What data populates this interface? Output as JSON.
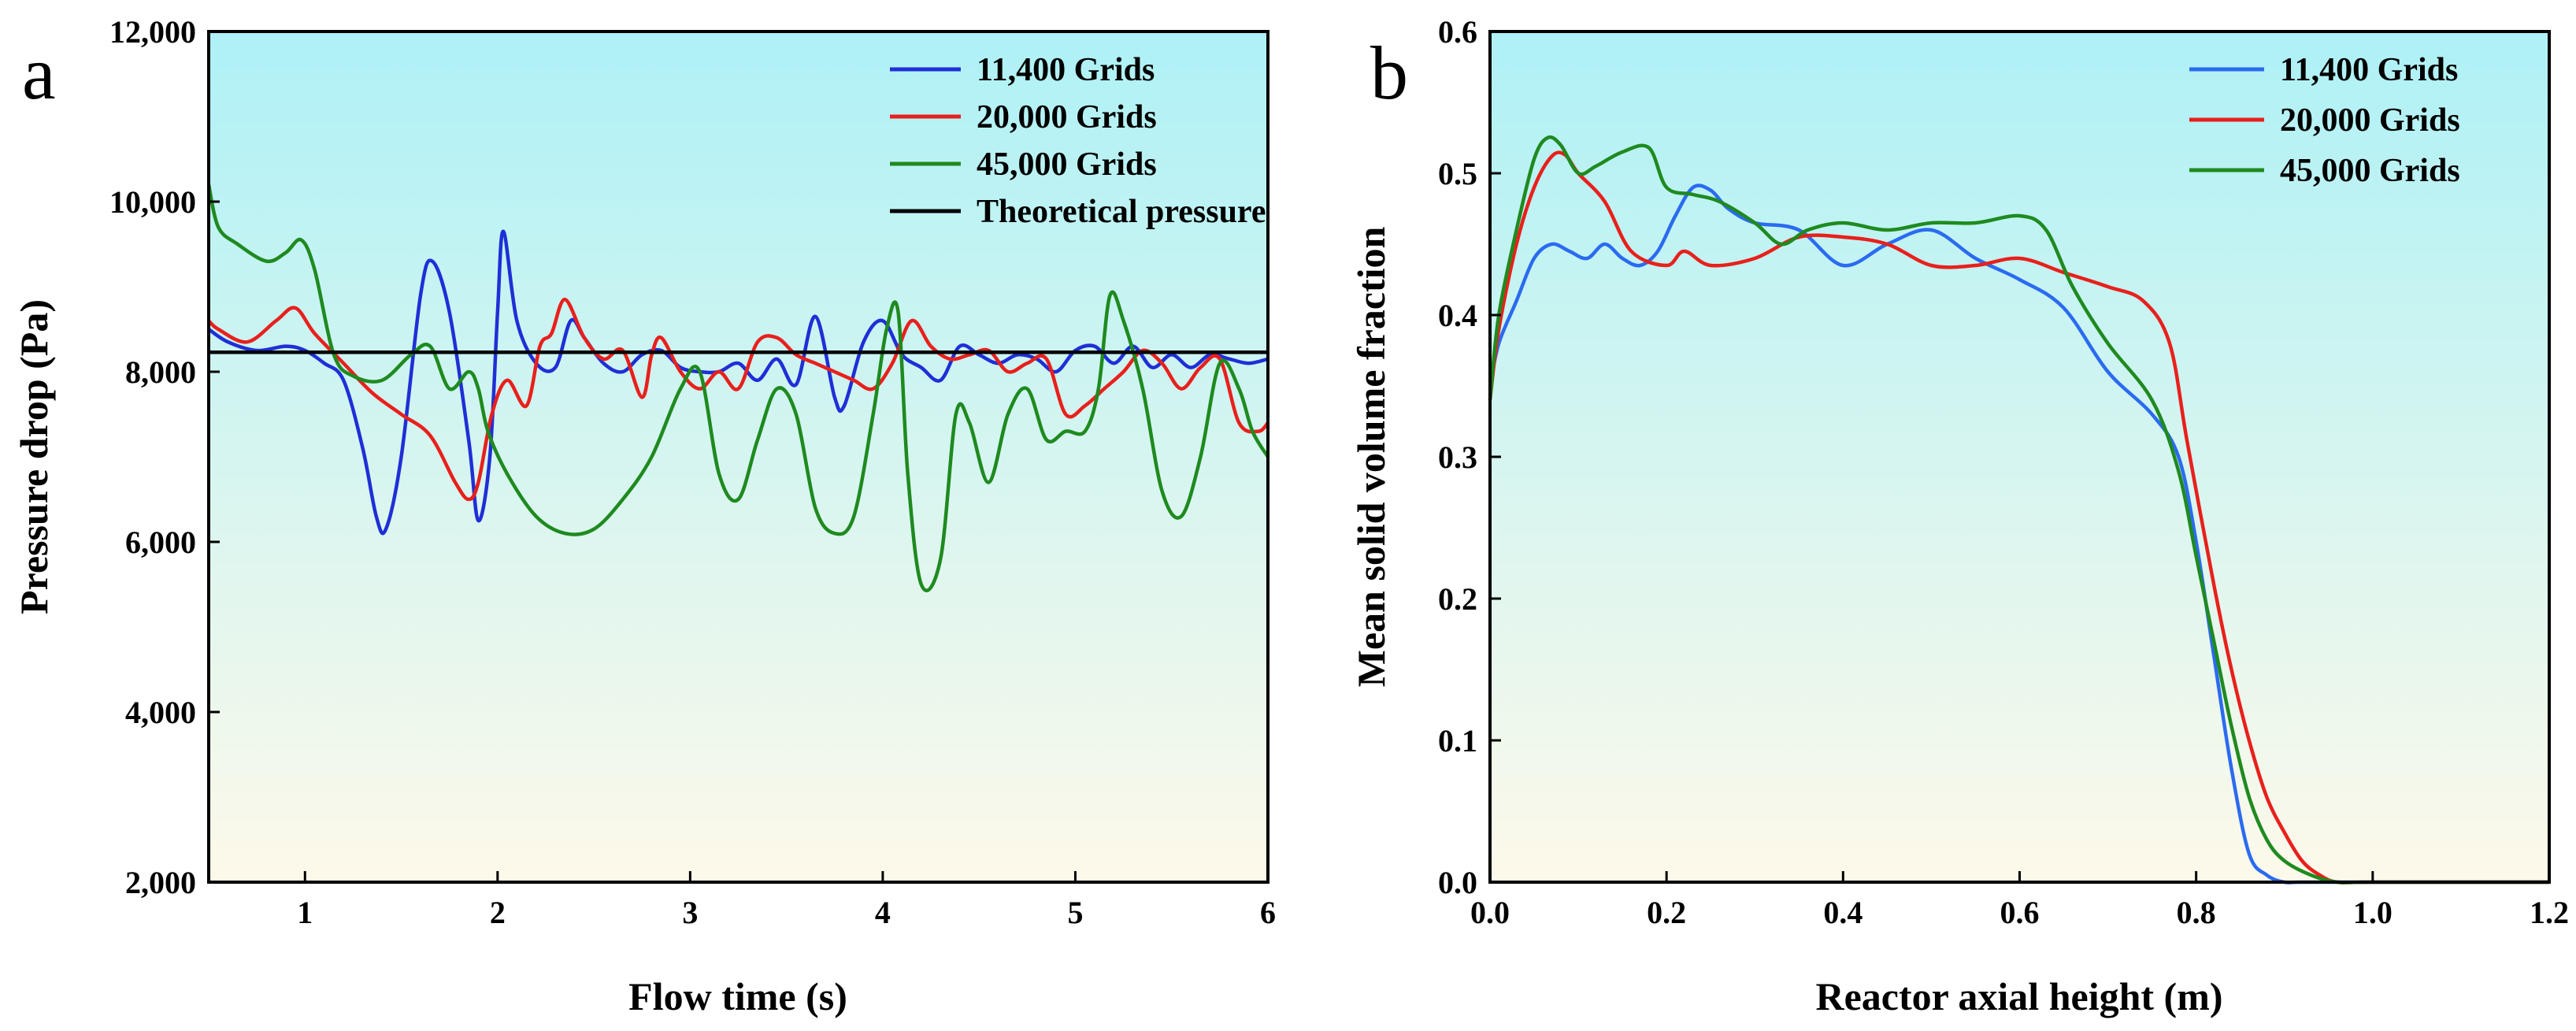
{
  "colors": {
    "blue": "#1f2fd6",
    "blue_b": "#2b6bf0",
    "red": "#e8201c",
    "green": "#1f8a1f",
    "black": "#000000",
    "bg_top": "#aef1f6",
    "bg_bottom": "#fdf9ea"
  },
  "chart_data": [
    {
      "type": "line",
      "panel_label": "a",
      "title": "",
      "xlabel": "Flow time (s)",
      "ylabel": "Pressure drop (Pa)",
      "xlim": [
        0.5,
        6
      ],
      "ylim": [
        2000,
        12000
      ],
      "x_ticks": [
        1,
        2,
        3,
        4,
        5,
        6
      ],
      "x_tick_labels": [
        "1",
        "2",
        "3",
        "4",
        "5",
        "6"
      ],
      "y_ticks": [
        2000,
        4000,
        6000,
        8000,
        10000,
        12000
      ],
      "y_tick_labels": [
        "2,000",
        "4,000",
        "6,000",
        "8,000",
        "10,000",
        "12,000"
      ],
      "legend_position": "top-right",
      "series": [
        {
          "name": "11,400 Grids",
          "color": "#1f2fd6",
          "x": [
            0.5,
            0.6,
            0.75,
            0.9,
            1.0,
            1.1,
            1.2,
            1.3,
            1.37,
            1.42,
            1.5,
            1.6,
            1.66,
            1.75,
            1.85,
            1.9,
            1.96,
            2.0,
            2.03,
            2.1,
            2.2,
            2.3,
            2.38,
            2.45,
            2.55,
            2.65,
            2.75,
            2.85,
            2.95,
            3.05,
            3.15,
            3.25,
            3.35,
            3.45,
            3.55,
            3.65,
            3.75,
            3.8,
            3.9,
            4.0,
            4.1,
            4.2,
            4.3,
            4.4,
            4.5,
            4.6,
            4.7,
            4.8,
            4.9,
            5.0,
            5.1,
            5.2,
            5.3,
            5.4,
            5.5,
            5.6,
            5.7,
            5.8,
            5.9,
            6.0
          ],
          "y": [
            8500,
            8350,
            8250,
            8300,
            8250,
            8100,
            7900,
            7100,
            6300,
            6150,
            7000,
            8900,
            9300,
            8700,
            7200,
            6250,
            7000,
            8700,
            9650,
            8600,
            8100,
            8050,
            8600,
            8400,
            8100,
            8000,
            8200,
            8250,
            8050,
            8000,
            8000,
            8100,
            7900,
            8150,
            7850,
            8650,
            7700,
            7600,
            8350,
            8600,
            8200,
            8050,
            7900,
            8300,
            8200,
            8100,
            8200,
            8150,
            8000,
            8250,
            8300,
            8100,
            8300,
            8050,
            8200,
            8050,
            8200,
            8150,
            8100,
            8150
          ]
        },
        {
          "name": "20,000 Grids",
          "color": "#e8201c",
          "x": [
            0.5,
            0.55,
            0.7,
            0.85,
            0.95,
            1.05,
            1.2,
            1.35,
            1.5,
            1.65,
            1.78,
            1.85,
            1.9,
            1.97,
            2.05,
            2.15,
            2.22,
            2.28,
            2.35,
            2.45,
            2.55,
            2.65,
            2.75,
            2.8,
            2.85,
            2.95,
            3.05,
            3.15,
            3.25,
            3.35,
            3.45,
            3.55,
            3.65,
            3.75,
            3.85,
            3.95,
            4.05,
            4.15,
            4.25,
            4.35,
            4.45,
            4.55,
            4.65,
            4.75,
            4.85,
            4.95,
            5.05,
            5.15,
            5.25,
            5.35,
            5.45,
            5.55,
            5.65,
            5.75,
            5.85,
            5.95,
            6.0
          ],
          "y": [
            8600,
            8500,
            8350,
            8600,
            8750,
            8450,
            8100,
            7750,
            7500,
            7250,
            6700,
            6500,
            6700,
            7500,
            7900,
            7600,
            8300,
            8450,
            8850,
            8400,
            8150,
            8250,
            7700,
            8200,
            8400,
            8000,
            7800,
            8000,
            7800,
            8350,
            8400,
            8200,
            8100,
            8000,
            7900,
            7800,
            8100,
            8600,
            8300,
            8150,
            8200,
            8250,
            8000,
            8100,
            8150,
            7500,
            7600,
            7800,
            8000,
            8250,
            8100,
            7800,
            8050,
            8150,
            7400,
            7300,
            7400
          ]
        },
        {
          "name": "45,000 Grids",
          "color": "#1f8a1f",
          "x": [
            0.5,
            0.55,
            0.65,
            0.8,
            0.9,
            0.98,
            1.05,
            1.15,
            1.25,
            1.4,
            1.55,
            1.65,
            1.75,
            1.85,
            1.9,
            1.95,
            2.05,
            2.2,
            2.35,
            2.5,
            2.65,
            2.8,
            2.95,
            3.05,
            3.15,
            3.25,
            3.35,
            3.45,
            3.55,
            3.65,
            3.75,
            3.85,
            3.95,
            4.02,
            4.08,
            4.13,
            4.2,
            4.3,
            4.38,
            4.45,
            4.55,
            4.65,
            4.75,
            4.85,
            4.95,
            5.05,
            5.12,
            5.18,
            5.25,
            5.35,
            5.45,
            5.55,
            5.65,
            5.75,
            5.85,
            5.92,
            6.0
          ],
          "y": [
            10200,
            9700,
            9500,
            9300,
            9400,
            9550,
            9200,
            8200,
            7950,
            7900,
            8200,
            8300,
            7800,
            8000,
            7800,
            7300,
            6800,
            6300,
            6100,
            6150,
            6500,
            7000,
            7800,
            8000,
            6800,
            6500,
            7200,
            7800,
            7500,
            6400,
            6100,
            6300,
            7500,
            8500,
            8700,
            6800,
            5500,
            5800,
            7500,
            7400,
            6700,
            7500,
            7800,
            7200,
            7300,
            7300,
            7800,
            8900,
            8600,
            7800,
            6600,
            6300,
            7000,
            8100,
            7800,
            7300,
            7000
          ]
        },
        {
          "name": "Theoretical pressure",
          "color": "#000000",
          "x": [
            0.5,
            6.0
          ],
          "y": [
            8230,
            8230
          ]
        }
      ]
    },
    {
      "type": "line",
      "panel_label": "b",
      "title": "",
      "xlabel": "Reactor axial height (m)",
      "ylabel": "Mean solid volume fraction",
      "xlim": [
        0,
        1.2
      ],
      "ylim": [
        0,
        0.6
      ],
      "x_ticks": [
        0,
        0.2,
        0.4,
        0.6,
        0.8,
        1.0,
        1.2
      ],
      "x_tick_labels": [
        "0.0",
        "0.2",
        "0.4",
        "0.6",
        "0.8",
        "1.0",
        "1.2"
      ],
      "y_ticks": [
        0,
        0.1,
        0.2,
        0.3,
        0.4,
        0.5,
        0.6
      ],
      "y_tick_labels": [
        "0.0",
        "0.1",
        "0.2",
        "0.3",
        "0.4",
        "0.5",
        "0.6"
      ],
      "legend_position": "top-right",
      "series": [
        {
          "name": "11,400 Grids",
          "color": "#2b6bf0",
          "x": [
            0.0,
            0.01,
            0.03,
            0.05,
            0.07,
            0.09,
            0.11,
            0.13,
            0.15,
            0.17,
            0.19,
            0.21,
            0.23,
            0.25,
            0.27,
            0.3,
            0.35,
            0.4,
            0.45,
            0.5,
            0.55,
            0.6,
            0.65,
            0.7,
            0.75,
            0.78,
            0.8,
            0.82,
            0.84,
            0.86,
            0.88,
            0.9,
            0.92,
            1.0,
            1.2
          ],
          "y": [
            0.35,
            0.38,
            0.41,
            0.44,
            0.45,
            0.445,
            0.44,
            0.45,
            0.44,
            0.435,
            0.445,
            0.47,
            0.49,
            0.488,
            0.475,
            0.465,
            0.46,
            0.435,
            0.45,
            0.46,
            0.44,
            0.425,
            0.405,
            0.36,
            0.33,
            0.3,
            0.24,
            0.16,
            0.08,
            0.02,
            0.005,
            0.0,
            0.0,
            0.0,
            0.0
          ]
        },
        {
          "name": "20,000 Grids",
          "color": "#e8201c",
          "x": [
            0.0,
            0.01,
            0.03,
            0.05,
            0.07,
            0.085,
            0.1,
            0.13,
            0.16,
            0.2,
            0.22,
            0.25,
            0.3,
            0.35,
            0.4,
            0.45,
            0.5,
            0.55,
            0.6,
            0.65,
            0.7,
            0.74,
            0.77,
            0.79,
            0.82,
            0.84,
            0.86,
            0.88,
            0.9,
            0.92,
            0.94,
            0.96,
            1.0,
            1.2
          ],
          "y": [
            0.34,
            0.39,
            0.45,
            0.49,
            0.512,
            0.513,
            0.5,
            0.48,
            0.445,
            0.435,
            0.445,
            0.435,
            0.44,
            0.455,
            0.455,
            0.45,
            0.435,
            0.435,
            0.44,
            0.43,
            0.42,
            0.41,
            0.38,
            0.31,
            0.21,
            0.15,
            0.1,
            0.06,
            0.035,
            0.015,
            0.005,
            0.0,
            0.0,
            0.0
          ]
        },
        {
          "name": "45,000 Grids",
          "color": "#1f8a1f",
          "x": [
            0.0,
            0.01,
            0.03,
            0.05,
            0.065,
            0.08,
            0.1,
            0.12,
            0.15,
            0.18,
            0.2,
            0.23,
            0.26,
            0.3,
            0.33,
            0.36,
            0.4,
            0.45,
            0.5,
            0.55,
            0.6,
            0.63,
            0.66,
            0.7,
            0.75,
            0.78,
            0.8,
            0.82,
            0.84,
            0.86,
            0.88,
            0.9,
            0.93,
            0.96,
            1.0,
            1.2
          ],
          "y": [
            0.34,
            0.4,
            0.46,
            0.51,
            0.525,
            0.52,
            0.5,
            0.505,
            0.515,
            0.518,
            0.49,
            0.485,
            0.48,
            0.465,
            0.45,
            0.46,
            0.465,
            0.46,
            0.465,
            0.465,
            0.47,
            0.46,
            0.42,
            0.38,
            0.34,
            0.29,
            0.23,
            0.17,
            0.11,
            0.06,
            0.03,
            0.015,
            0.005,
            0.0,
            0.0,
            0.0
          ]
        }
      ]
    }
  ]
}
